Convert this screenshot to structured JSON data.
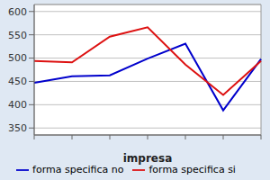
{
  "chart_data": {
    "type": "line",
    "x_label": "impresa",
    "categories": [
      null,
      null,
      null,
      null,
      null,
      null,
      null
    ],
    "series": [
      {
        "name": "forma specifica no",
        "color": "#0000cc",
        "values": [
          447,
          461,
          463,
          499,
          531,
          388,
          498
        ]
      },
      {
        "name": "forma specifica si",
        "color": "#dd1111",
        "values": [
          494,
          491,
          546,
          566,
          486,
          421,
          494
        ]
      }
    ],
    "ylim": [
      335,
      615
    ],
    "yticks": [
      350,
      400,
      450,
      500,
      550,
      600
    ],
    "grid": true,
    "legend": "bottom"
  }
}
